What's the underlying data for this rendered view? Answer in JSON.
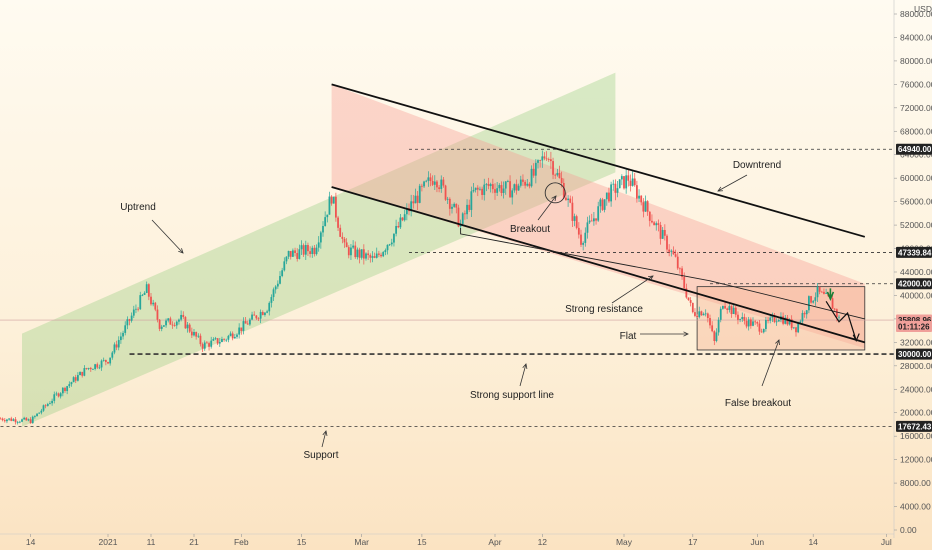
{
  "chart_data": {
    "type": "candlestick",
    "currency_label": "USD",
    "y_ticks": [
      0,
      4000,
      8000,
      12000,
      16000,
      20000,
      24000,
      28000,
      32000,
      36000,
      40000,
      44000,
      48000,
      52000,
      56000,
      60000,
      64000,
      68000,
      72000,
      76000,
      80000,
      84000,
      88000
    ],
    "y_tick_labels": [
      "0.00",
      "4000.00",
      "8000.00",
      "12000.00",
      "16000.00",
      "20000.00",
      "24000.00",
      "28000.00",
      "32000.00",
      "36000.00",
      "40000.00",
      "44000.00",
      "48000.00",
      "52000.00",
      "56000.00",
      "60000.00",
      "64000.00",
      "68000.00",
      "72000.00",
      "76000.00",
      "80000.00",
      "84000.00",
      "88000.00"
    ],
    "x_ticks": [
      {
        "label": "14",
        "day": -18
      },
      {
        "label": "2021",
        "day": 0
      },
      {
        "label": "11",
        "day": 10
      },
      {
        "label": "21",
        "day": 20
      },
      {
        "label": "Feb",
        "day": 31
      },
      {
        "label": "15",
        "day": 45
      },
      {
        "label": "Mar",
        "day": 59
      },
      {
        "label": "15",
        "day": 73
      },
      {
        "label": "Apr",
        "day": 90
      },
      {
        "label": "12",
        "day": 101
      },
      {
        "label": "May",
        "day": 120
      },
      {
        "label": "17",
        "day": 136
      },
      {
        "label": "Jun",
        "day": 151
      },
      {
        "label": "14",
        "day": 164
      },
      {
        "label": "Jul",
        "day": 181
      }
    ],
    "price_tags": [
      {
        "value": "64940.00",
        "price": 64940,
        "color": "#222222",
        "text_color": "#ffffff"
      },
      {
        "value": "47339.84",
        "price": 47339.84,
        "color": "#222222",
        "text_color": "#ffffff"
      },
      {
        "value": "42000.00",
        "price": 42000,
        "color": "#222222",
        "text_color": "#ffffff"
      },
      {
        "value": "35808.96",
        "price": 35808.96,
        "color": "#f0a09a",
        "text_color": "#222222"
      },
      {
        "value": "01:11:26",
        "price": 34700,
        "color": "#f0a09a",
        "text_color": "#222222"
      },
      {
        "value": "30000.00",
        "price": 30000,
        "color": "#222222",
        "text_color": "#ffffff"
      },
      {
        "value": "17672.43",
        "price": 17672.43,
        "color": "#222222",
        "text_color": "#ffffff"
      }
    ],
    "horizontal_levels": [
      64940,
      47339.84,
      42000,
      30000,
      17672.43
    ],
    "current_price": 35808.96,
    "annotations": [
      "Uptrend",
      "Downtrend",
      "Breakout",
      "Strong resistance",
      "Flat",
      "Strong support line",
      "False breakout",
      "Support"
    ],
    "colors": {
      "up": "#26a69a",
      "down": "#ef5350",
      "uptrend_fill": "#9ccf86",
      "downtrend_fill": "#f79a93",
      "flat_fill": "#f7b79a"
    }
  },
  "ui": {
    "labels": {
      "uptrend": "Uptrend",
      "downtrend": "Downtrend",
      "breakout": "Breakout",
      "strong_resistance": "Strong resistance",
      "flat": "Flat",
      "strong_support": "Strong support line",
      "false_breakout": "False breakout",
      "support": "Support"
    }
  }
}
